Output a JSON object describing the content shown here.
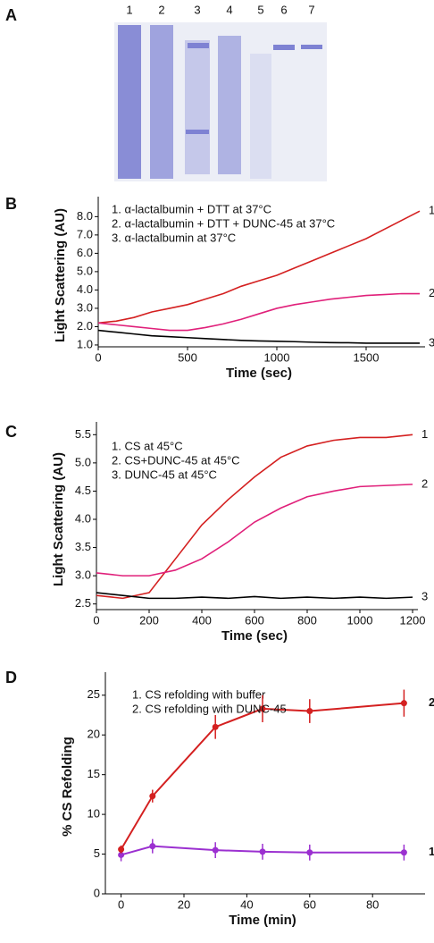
{
  "gel": {
    "panel": "A",
    "lanes": [
      "1",
      "2",
      "3",
      "4",
      "5",
      "6",
      "7"
    ]
  },
  "chart_data": [
    {
      "type": "line",
      "panel": "B",
      "x_label": "Time (sec)",
      "y_label": "Light Scattering (AU)",
      "x": [
        0,
        100,
        200,
        300,
        400,
        500,
        600,
        700,
        800,
        900,
        1000,
        1100,
        1200,
        1300,
        1400,
        1500,
        1600,
        1700,
        1800
      ],
      "xlim": [
        0,
        1800
      ],
      "xticks": [
        0,
        500,
        1000,
        1500
      ],
      "ylim": [
        0.9,
        8.7
      ],
      "yticks": [
        {
          "value": 1,
          "label": "1.0"
        },
        {
          "value": 2,
          "label": "2.0"
        },
        {
          "value": 3,
          "label": "3.0"
        },
        {
          "value": 4,
          "label": "4.0"
        },
        {
          "value": 5,
          "label": "5.0"
        },
        {
          "value": 6,
          "label": "6.0"
        },
        {
          "value": 7,
          "label": "7.0"
        },
        {
          "value": 8,
          "label": "8.0"
        }
      ],
      "series": [
        {
          "name": "1. α-lactalbumin + DTT at 37°C",
          "end_label": "1",
          "color": "#d42020",
          "values": [
            2.2,
            2.3,
            2.5,
            2.8,
            3.0,
            3.2,
            3.5,
            3.8,
            4.2,
            4.5,
            4.8,
            5.2,
            5.6,
            6.0,
            6.4,
            6.8,
            7.3,
            7.8,
            8.3
          ]
        },
        {
          "name": "2. α-lactalbumin + DTT + DUNC-45 at 37°C",
          "end_label": "2",
          "color": "#e0207a",
          "values": [
            2.2,
            2.1,
            2.0,
            1.9,
            1.8,
            1.8,
            1.95,
            2.15,
            2.4,
            2.7,
            3.0,
            3.2,
            3.35,
            3.5,
            3.6,
            3.7,
            3.75,
            3.8,
            3.8
          ]
        },
        {
          "name": "3. α-lactalbumin at 37°C",
          "end_label": "3",
          "color": "#000000",
          "values": [
            1.8,
            1.7,
            1.6,
            1.5,
            1.45,
            1.4,
            1.35,
            1.3,
            1.25,
            1.22,
            1.2,
            1.18,
            1.15,
            1.13,
            1.12,
            1.1,
            1.1,
            1.1,
            1.1
          ]
        }
      ]
    },
    {
      "type": "line",
      "panel": "C",
      "x_label": "Time (sec)",
      "y_label": "Light Scattering (AU)",
      "x": [
        0,
        100,
        200,
        300,
        400,
        500,
        600,
        700,
        800,
        900,
        1000,
        1100,
        1200
      ],
      "xlim": [
        0,
        1200
      ],
      "xticks": [
        0,
        200,
        400,
        600,
        800,
        1000,
        1200
      ],
      "ylim": [
        2.4,
        5.6
      ],
      "yticks": [
        2.5,
        {
          "value": 3,
          "label": "3.0"
        },
        3.5,
        {
          "value": 4,
          "label": "4.0"
        },
        4.5,
        {
          "value": 5,
          "label": "5.0"
        },
        5.5
      ],
      "series": [
        {
          "name": "1. CS at 45°C",
          "end_label": "1",
          "color": "#d42020",
          "values": [
            2.65,
            2.6,
            2.7,
            3.3,
            3.9,
            4.35,
            4.75,
            5.1,
            5.3,
            5.4,
            5.45,
            5.45,
            5.5
          ]
        },
        {
          "name": "2. CS+DUNC-45 at 45°C",
          "end_label": "2",
          "color": "#e0207a",
          "values": [
            3.05,
            3.0,
            3.0,
            3.1,
            3.3,
            3.6,
            3.95,
            4.2,
            4.4,
            4.5,
            4.58,
            4.6,
            4.62
          ]
        },
        {
          "name": "3. DUNC-45 at 45°C",
          "end_label": "3",
          "color": "#000000",
          "values": [
            2.7,
            2.65,
            2.6,
            2.6,
            2.62,
            2.6,
            2.63,
            2.6,
            2.62,
            2.6,
            2.62,
            2.6,
            2.62
          ]
        }
      ]
    },
    {
      "type": "line",
      "panel": "D",
      "x_label": "Time (min)",
      "y_label": "% CS Refolding",
      "x": [
        0,
        10,
        30,
        45,
        60,
        90
      ],
      "xlim": [
        -5,
        95
      ],
      "xticks": [
        0,
        20,
        40,
        60,
        80
      ],
      "ylim": [
        0,
        27
      ],
      "yticks": [
        0,
        5,
        10,
        15,
        20,
        25
      ],
      "markers": true,
      "series": [
        {
          "name": "1. CS refolding with buffer",
          "end_label": "1",
          "color": "#9b30d0",
          "values": [
            4.9,
            6.0,
            5.5,
            5.3,
            5.2,
            5.2
          ],
          "errors": [
            0.8,
            0.9,
            1.0,
            1.0,
            1.0,
            1.0
          ]
        },
        {
          "name": "2. CS refolding with DUNC-45",
          "end_label": "2",
          "color": "#d42020",
          "values": [
            5.6,
            12.3,
            21.0,
            23.3,
            23.0,
            24.0
          ],
          "errors": [
            0.5,
            0.8,
            1.5,
            1.7,
            1.5,
            1.7
          ]
        }
      ]
    }
  ]
}
